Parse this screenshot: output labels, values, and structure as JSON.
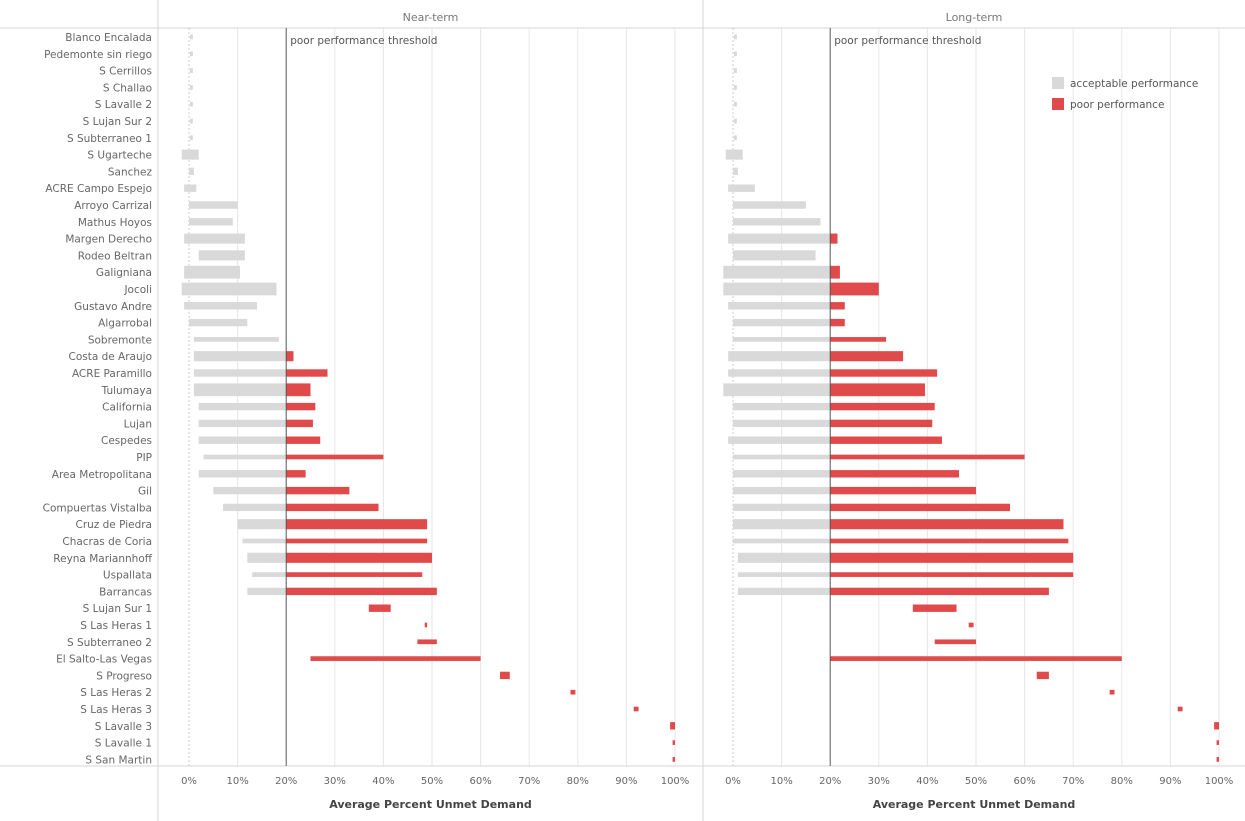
{
  "chart_data": {
    "type": "bar",
    "subtype": "horizontal range bars (min–max) split by performance threshold",
    "threshold_label": "poor performance threshold",
    "threshold_value": 20,
    "x_axis_label": "Average Percent Unmet Demand",
    "x_ticks": [
      "0%",
      "10%",
      "20%",
      "30%",
      "40%",
      "50%",
      "60%",
      "70%",
      "80%",
      "90%",
      "100%"
    ],
    "xlim": [
      0,
      100
    ],
    "legend": {
      "placement": "top-right",
      "entries": [
        {
          "label": "acceptable performance",
          "color": "#d9d9d9"
        },
        {
          "label": "poor performance",
          "color": "#e04a4a"
        }
      ]
    },
    "colors": {
      "acceptable": "#d9d9d9",
      "poor": "#e04a4a",
      "grid": "#e6e6e6",
      "divider": "#d6d6d6",
      "threshold_line": "#555555",
      "text": "#666666"
    },
    "categories": [
      "Blanco Encalada",
      "Pedemonte sin riego",
      "S Cerrillos",
      "S Challao",
      "S Lavalle 2",
      "S Lujan Sur 2",
      "S Subterraneo 1",
      "S Ugarteche",
      "Sanchez",
      "ACRE Campo Espejo",
      "Arroyo Carrizal",
      "Mathus Hoyos",
      "Margen Derecho",
      "Rodeo Beltran",
      "Galigniana",
      "Jocoli",
      "Gustavo Andre",
      "Algarrobal",
      "Sobremonte",
      "Costa de Araujo",
      "ACRE Paramillo",
      "Tulumaya",
      "California",
      "Lujan",
      "Cespedes",
      "PIP",
      "Area Metropolitana",
      "Gil",
      "Compuertas Vistalba",
      "Cruz de Piedra",
      "Chacras de Coria",
      "Reyna Mariannhoff",
      "Uspallata",
      "Barrancas",
      "S Lujan Sur 1",
      "S Las Heras 1",
      "S Subterraneo 2",
      "El Salto-Las Vegas",
      "S Progreso",
      "S Las Heras 2",
      "S Las Heras 3",
      "S Lavalle 3",
      "S Lavalle 1",
      "S San Martin"
    ],
    "panels": [
      {
        "title": "Near-term",
        "ranges": [
          [
            0.2,
            0.8
          ],
          [
            0.2,
            0.8
          ],
          [
            0.2,
            0.8
          ],
          [
            0.2,
            0.8
          ],
          [
            0.2,
            0.8
          ],
          [
            0.2,
            0.8
          ],
          [
            0.2,
            0.8
          ],
          [
            -1.5,
            2
          ],
          [
            0,
            1
          ],
          [
            -1,
            1.5
          ],
          [
            0,
            10
          ],
          [
            0,
            9
          ],
          [
            -1,
            11.5
          ],
          [
            2,
            11.5
          ],
          [
            -1,
            10.5
          ],
          [
            -1.5,
            18
          ],
          [
            -1,
            14
          ],
          [
            0,
            12
          ],
          [
            1,
            18.5
          ],
          [
            1,
            21.5
          ],
          [
            1,
            28.5
          ],
          [
            1,
            25
          ],
          [
            2,
            26
          ],
          [
            2,
            25.5
          ],
          [
            2,
            27
          ],
          [
            3,
            40
          ],
          [
            2,
            24
          ],
          [
            5,
            33
          ],
          [
            7,
            39
          ],
          [
            10,
            49
          ],
          [
            11,
            49
          ],
          [
            12,
            50
          ],
          [
            13,
            48
          ],
          [
            12,
            51
          ],
          [
            37,
            41.5
          ],
          [
            48.5,
            49
          ],
          [
            47,
            51
          ],
          [
            25,
            60
          ],
          [
            64,
            66
          ],
          [
            78.5,
            79.5
          ],
          [
            91.5,
            92.5
          ],
          [
            99,
            100
          ],
          [
            99.5,
            100
          ],
          [
            99.5,
            100
          ]
        ],
        "thickness": [
          1,
          1,
          1,
          1,
          1,
          1,
          1,
          3,
          2,
          2,
          2,
          2,
          3,
          3,
          4,
          4,
          2,
          2,
          1,
          3,
          2,
          4,
          2,
          2,
          2,
          1,
          2,
          2,
          2,
          3,
          1,
          3,
          1,
          2,
          2,
          1,
          1,
          1,
          2,
          1,
          1,
          2,
          1,
          1
        ]
      },
      {
        "title": "Long-term",
        "ranges": [
          [
            0.2,
            0.8
          ],
          [
            0.2,
            0.8
          ],
          [
            0.2,
            0.8
          ],
          [
            0.2,
            0.8
          ],
          [
            0.2,
            0.8
          ],
          [
            0.2,
            0.8
          ],
          [
            0.2,
            0.8
          ],
          [
            -1.5,
            2
          ],
          [
            0,
            1
          ],
          [
            -1,
            4.5
          ],
          [
            0,
            15
          ],
          [
            0,
            18
          ],
          [
            -1,
            21.5
          ],
          [
            0,
            17
          ],
          [
            -2,
            22
          ],
          [
            -2,
            30
          ],
          [
            -1,
            23
          ],
          [
            0,
            23
          ],
          [
            0,
            31.5
          ],
          [
            -1,
            35
          ],
          [
            -1,
            42
          ],
          [
            -2,
            39.5
          ],
          [
            0,
            41.5
          ],
          [
            0,
            41
          ],
          [
            -1,
            43
          ],
          [
            0,
            60
          ],
          [
            0,
            46.5
          ],
          [
            0,
            50
          ],
          [
            0,
            57
          ],
          [
            0,
            68
          ],
          [
            0,
            69
          ],
          [
            1,
            70
          ],
          [
            1,
            70
          ],
          [
            1,
            65
          ],
          [
            37,
            46
          ],
          [
            48.5,
            49.5
          ],
          [
            41.5,
            50
          ],
          [
            20,
            80
          ],
          [
            62.5,
            65
          ],
          [
            77.5,
            78.5
          ],
          [
            91.5,
            92.5
          ],
          [
            99,
            100
          ],
          [
            99.5,
            100
          ],
          [
            99.5,
            100
          ]
        ],
        "thickness": [
          1,
          1,
          1,
          1,
          1,
          1,
          1,
          3,
          2,
          2,
          2,
          2,
          3,
          3,
          4,
          4,
          2,
          2,
          1,
          3,
          2,
          4,
          2,
          2,
          2,
          1,
          2,
          2,
          2,
          3,
          1,
          3,
          1,
          2,
          2,
          1,
          1,
          1,
          2,
          1,
          1,
          2,
          1,
          1
        ]
      }
    ]
  }
}
